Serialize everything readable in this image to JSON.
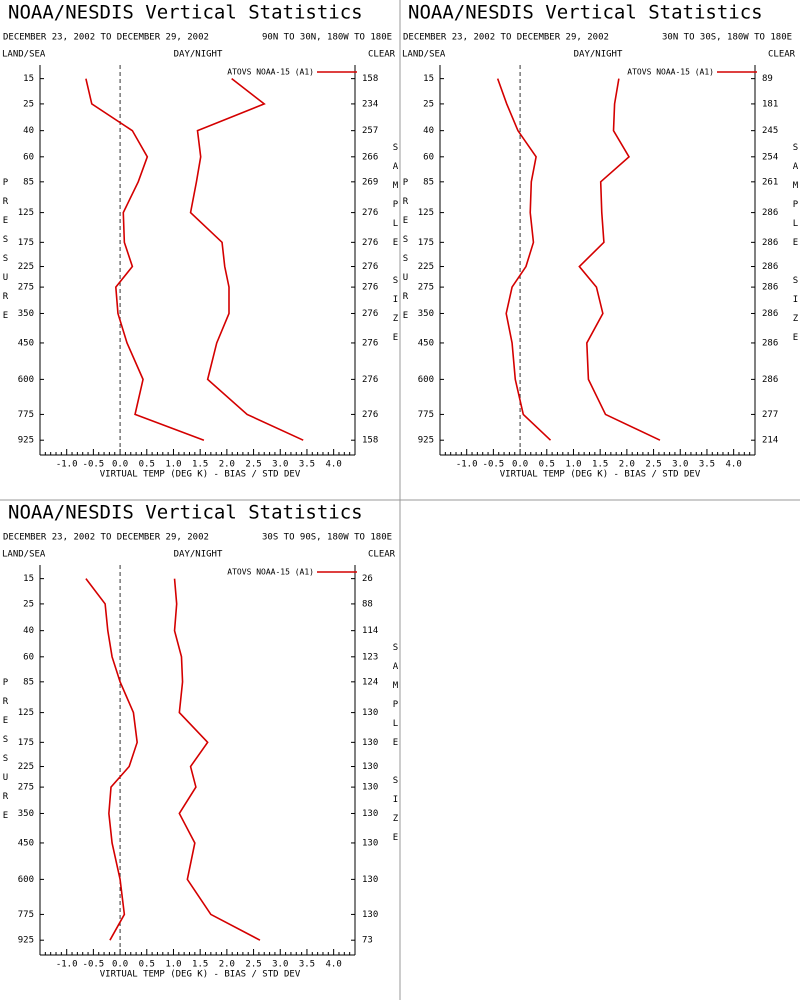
{
  "chart_data": [
    {
      "type": "line",
      "title": "NOAA/NESDIS Vertical Statistics",
      "date_range": "DECEMBER 23, 2002 TO DECEMBER 29, 2002",
      "region": "90N TO 30N, 180W TO 180E",
      "left_header": "LAND/SEA",
      "center_header": "DAY/NIGHT",
      "right_header": "CLEAR",
      "y_label": "PRESSURE",
      "y2_label": "SAMPLE SIZE",
      "x_label": "VIRTUAL TEMP (DEG K) - BIAS / STD DEV",
      "y": [
        15,
        25,
        40,
        60,
        85,
        125,
        175,
        225,
        275,
        350,
        450,
        600,
        775,
        925
      ],
      "y_power": 0.286,
      "ylim": [
        11,
        1020
      ],
      "yticks": [
        15,
        25,
        40,
        60,
        85,
        125,
        175,
        225,
        275,
        350,
        450,
        600,
        775,
        925
      ],
      "xlim": [
        -1.5,
        4.4
      ],
      "xticks": [
        {
          "value": -1,
          "label": "-1.0"
        },
        {
          "value": -0.5,
          "label": "-0.5"
        },
        {
          "value": 0,
          "label": "0.0"
        },
        {
          "value": 0.5,
          "label": "0.5"
        },
        {
          "value": 1,
          "label": "1.0"
        },
        {
          "value": 1.5,
          "label": "1.5"
        },
        {
          "value": 2,
          "label": "2.0"
        },
        {
          "value": 2.5,
          "label": "2.5"
        },
        {
          "value": 3,
          "label": "3.0"
        },
        {
          "value": 3.5,
          "label": "3.5"
        },
        {
          "value": 4,
          "label": "4.0"
        }
      ],
      "reference_x": 0,
      "sample_size": [
        158,
        234,
        257,
        266,
        269,
        276,
        276,
        276,
        276,
        276,
        276,
        276,
        276,
        158
      ],
      "series": [
        {
          "name": "ATOVS NOAA-15 (A1)",
          "color": "#d40000",
          "values": [
            -0.64,
            -0.53,
            0.23,
            0.51,
            0.34,
            0.06,
            0.08,
            0.23,
            -0.08,
            -0.04,
            0.13,
            0.43,
            0.28,
            1.57
          ],
          "std": [
            2.09,
            2.7,
            1.45,
            1.51,
            1.43,
            1.32,
            1.91,
            1.96,
            2.04,
            2.04,
            1.81,
            1.64,
            2.38,
            3.43
          ]
        }
      ]
    },
    {
      "type": "line",
      "title": "NOAA/NESDIS Vertical Statistics",
      "date_range": "DECEMBER 23, 2002 TO DECEMBER 29, 2002",
      "region": "30N TO 30S, 180W TO 180E",
      "left_header": "LAND/SEA",
      "center_header": "DAY/NIGHT",
      "right_header": "CLEAR",
      "y_label": "PRESSURE",
      "y2_label": "SAMPLE SIZE",
      "x_label": "VIRTUAL TEMP (DEG K) - BIAS / STD DEV",
      "y": [
        15,
        25,
        40,
        60,
        85,
        125,
        175,
        225,
        275,
        350,
        450,
        600,
        775,
        925
      ],
      "y_power": 0.286,
      "ylim": [
        11,
        1020
      ],
      "yticks": [
        15,
        25,
        40,
        60,
        85,
        125,
        175,
        225,
        275,
        350,
        450,
        600,
        775,
        925
      ],
      "xlim": [
        -1.5,
        4.4
      ],
      "xticks": [
        {
          "value": -1,
          "label": "-1.0"
        },
        {
          "value": -0.5,
          "label": "-0.5"
        },
        {
          "value": 0,
          "label": "0.0"
        },
        {
          "value": 0.5,
          "label": "0.5"
        },
        {
          "value": 1,
          "label": "1.0"
        },
        {
          "value": 1.5,
          "label": "1.5"
        },
        {
          "value": 2,
          "label": "2.0"
        },
        {
          "value": 2.5,
          "label": "2.5"
        },
        {
          "value": 3,
          "label": "3.0"
        },
        {
          "value": 3.5,
          "label": "3.5"
        },
        {
          "value": 4,
          "label": "4.0"
        }
      ],
      "reference_x": 0,
      "sample_size": [
        89,
        181,
        245,
        254,
        261,
        286,
        286,
        286,
        286,
        286,
        286,
        286,
        277,
        214
      ],
      "series": [
        {
          "name": "ATOVS NOAA-15 (A1)",
          "color": "#d40000",
          "values": [
            -0.42,
            -0.25,
            -0.04,
            0.3,
            0.21,
            0.19,
            0.25,
            0.11,
            -0.15,
            -0.26,
            -0.15,
            -0.09,
            0.06,
            0.57
          ],
          "std": [
            1.85,
            1.77,
            1.75,
            2.04,
            1.51,
            1.53,
            1.57,
            1.11,
            1.43,
            1.55,
            1.25,
            1.28,
            1.6,
            2.62
          ]
        }
      ]
    },
    {
      "type": "line",
      "title": "NOAA/NESDIS Vertical Statistics",
      "date_range": "DECEMBER 23, 2002 TO DECEMBER 29, 2002",
      "region": "30S TO 90S, 180W TO 180E",
      "left_header": "LAND/SEA",
      "center_header": "DAY/NIGHT",
      "right_header": "CLEAR",
      "y_label": "PRESSURE",
      "y2_label": "SAMPLE SIZE",
      "x_label": "VIRTUAL TEMP (DEG K) - BIAS / STD DEV",
      "y": [
        15,
        25,
        40,
        60,
        85,
        125,
        175,
        225,
        275,
        350,
        450,
        600,
        775,
        925
      ],
      "y_power": 0.286,
      "ylim": [
        11,
        1020
      ],
      "yticks": [
        15,
        25,
        40,
        60,
        85,
        125,
        175,
        225,
        275,
        350,
        450,
        600,
        775,
        925
      ],
      "xlim": [
        -1.5,
        4.4
      ],
      "xticks": [
        {
          "value": -1,
          "label": "-1.0"
        },
        {
          "value": -0.5,
          "label": "-0.5"
        },
        {
          "value": 0,
          "label": "0.0"
        },
        {
          "value": 0.5,
          "label": "0.5"
        },
        {
          "value": 1,
          "label": "1.0"
        },
        {
          "value": 1.5,
          "label": "1.5"
        },
        {
          "value": 2,
          "label": "2.0"
        },
        {
          "value": 2.5,
          "label": "2.5"
        },
        {
          "value": 3,
          "label": "3.0"
        },
        {
          "value": 3.5,
          "label": "3.5"
        },
        {
          "value": 4,
          "label": "4.0"
        }
      ],
      "reference_x": 0,
      "sample_size": [
        26,
        88,
        114,
        123,
        124,
        130,
        130,
        130,
        130,
        130,
        130,
        130,
        130,
        73
      ],
      "series": [
        {
          "name": "ATOVS NOAA-15 (A1)",
          "color": "#d40000",
          "values": [
            -0.64,
            -0.28,
            -0.23,
            -0.15,
            0.0,
            0.25,
            0.32,
            0.17,
            -0.17,
            -0.21,
            -0.15,
            0.0,
            0.08,
            -0.19
          ],
          "std": [
            1.02,
            1.06,
            1.02,
            1.15,
            1.17,
            1.11,
            1.64,
            1.32,
            1.42,
            1.11,
            1.4,
            1.26,
            1.7,
            2.62
          ]
        }
      ]
    }
  ]
}
